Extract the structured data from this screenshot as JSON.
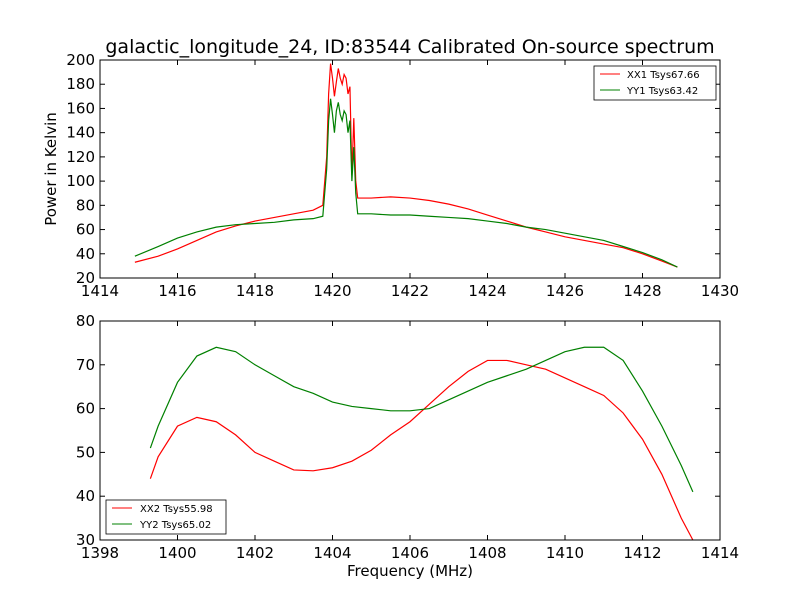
{
  "chart_data": [
    {
      "type": "line",
      "title": "galactic_longitude_24, ID:83544 Calibrated On-source spectrum",
      "xlabel": "",
      "ylabel": "Power in Kelvin",
      "xlim": [
        1414,
        1430
      ],
      "ylim": [
        20,
        200
      ],
      "xticks": [
        "1414",
        "1416",
        "1418",
        "1420",
        "1422",
        "1424",
        "1426",
        "1428",
        "1430"
      ],
      "yticks": [
        "20",
        "40",
        "60",
        "80",
        "100",
        "120",
        "140",
        "160",
        "180",
        "200"
      ],
      "grid": false,
      "legend_position": "top-right",
      "series": [
        {
          "name": "XX1 Tsys67.66",
          "color": "#ff0000",
          "points": [
            [
              1414.9,
              33
            ],
            [
              1415.5,
              38
            ],
            [
              1416,
              44
            ],
            [
              1416.5,
              51
            ],
            [
              1417,
              58
            ],
            [
              1417.5,
              63
            ],
            [
              1418,
              67
            ],
            [
              1418.5,
              70
            ],
            [
              1419,
              73
            ],
            [
              1419.5,
              76
            ],
            [
              1419.75,
              80
            ],
            [
              1419.85,
              120
            ],
            [
              1419.9,
              172
            ],
            [
              1419.95,
              197
            ],
            [
              1420.0,
              185
            ],
            [
              1420.05,
              170
            ],
            [
              1420.1,
              182
            ],
            [
              1420.15,
              193
            ],
            [
              1420.2,
              185
            ],
            [
              1420.25,
              180
            ],
            [
              1420.3,
              188
            ],
            [
              1420.35,
              185
            ],
            [
              1420.4,
              172
            ],
            [
              1420.45,
              178
            ],
            [
              1420.5,
              105
            ],
            [
              1420.55,
              152
            ],
            [
              1420.6,
              100
            ],
            [
              1420.65,
              86
            ],
            [
              1421,
              86
            ],
            [
              1421.5,
              87
            ],
            [
              1422,
              86
            ],
            [
              1422.5,
              84
            ],
            [
              1423,
              81
            ],
            [
              1423.5,
              77
            ],
            [
              1424,
              72
            ],
            [
              1424.5,
              67
            ],
            [
              1425,
              62
            ],
            [
              1425.5,
              58
            ],
            [
              1426,
              54
            ],
            [
              1426.5,
              51
            ],
            [
              1427,
              48
            ],
            [
              1427.5,
              45
            ],
            [
              1428,
              40
            ],
            [
              1428.5,
              34
            ],
            [
              1428.9,
              29
            ]
          ]
        },
        {
          "name": "YY1 Tsys63.42",
          "color": "#008000",
          "points": [
            [
              1414.9,
              38
            ],
            [
              1415.5,
              46
            ],
            [
              1416,
              53
            ],
            [
              1416.5,
              58
            ],
            [
              1417,
              62
            ],
            [
              1417.5,
              64
            ],
            [
              1418,
              65
            ],
            [
              1418.5,
              66
            ],
            [
              1419,
              68
            ],
            [
              1419.5,
              69
            ],
            [
              1419.75,
              71
            ],
            [
              1419.85,
              110
            ],
            [
              1419.9,
              150
            ],
            [
              1419.95,
              168
            ],
            [
              1420.0,
              155
            ],
            [
              1420.05,
              140
            ],
            [
              1420.1,
              158
            ],
            [
              1420.15,
              165
            ],
            [
              1420.2,
              155
            ],
            [
              1420.25,
              150
            ],
            [
              1420.3,
              158
            ],
            [
              1420.35,
              155
            ],
            [
              1420.4,
              140
            ],
            [
              1420.45,
              150
            ],
            [
              1420.5,
              100
            ],
            [
              1420.55,
              128
            ],
            [
              1420.6,
              90
            ],
            [
              1420.65,
              73
            ],
            [
              1421,
              73
            ],
            [
              1421.5,
              72
            ],
            [
              1422,
              72
            ],
            [
              1422.5,
              71
            ],
            [
              1423,
              70
            ],
            [
              1423.5,
              69
            ],
            [
              1424,
              67
            ],
            [
              1424.5,
              65
            ],
            [
              1425,
              62
            ],
            [
              1425.5,
              60
            ],
            [
              1426,
              57
            ],
            [
              1426.5,
              54
            ],
            [
              1427,
              51
            ],
            [
              1427.5,
              46
            ],
            [
              1428,
              41
            ],
            [
              1428.5,
              35
            ],
            [
              1428.9,
              29
            ]
          ]
        }
      ]
    },
    {
      "type": "line",
      "title": "",
      "xlabel": "Frequency (MHz)",
      "ylabel": "",
      "xlim": [
        1398,
        1414
      ],
      "ylim": [
        30,
        80
      ],
      "xticks": [
        "1398",
        "1400",
        "1402",
        "1404",
        "1406",
        "1408",
        "1410",
        "1412",
        "1414"
      ],
      "yticks": [
        "30",
        "40",
        "50",
        "60",
        "70",
        "80"
      ],
      "grid": false,
      "legend_position": "bottom-left",
      "series": [
        {
          "name": "XX2 Tsys55.98",
          "color": "#ff0000",
          "points": [
            [
              1399.3,
              44
            ],
            [
              1399.5,
              49
            ],
            [
              1400,
              56
            ],
            [
              1400.5,
              58
            ],
            [
              1401,
              57
            ],
            [
              1401.5,
              54
            ],
            [
              1402,
              50
            ],
            [
              1402.5,
              48
            ],
            [
              1403,
              46
            ],
            [
              1403.5,
              45.8
            ],
            [
              1404,
              46.5
            ],
            [
              1404.5,
              48
            ],
            [
              1405,
              50.5
            ],
            [
              1405.5,
              54
            ],
            [
              1406,
              57
            ],
            [
              1406.5,
              61
            ],
            [
              1407,
              65
            ],
            [
              1407.5,
              68.5
            ],
            [
              1408,
              71
            ],
            [
              1408.5,
              71
            ],
            [
              1409,
              70
            ],
            [
              1409.5,
              69
            ],
            [
              1410,
              67
            ],
            [
              1410.5,
              65
            ],
            [
              1411,
              63
            ],
            [
              1411.5,
              59
            ],
            [
              1412,
              53
            ],
            [
              1412.5,
              45
            ],
            [
              1413,
              35
            ],
            [
              1413.3,
              30
            ]
          ]
        },
        {
          "name": "YY2 Tsys65.02",
          "color": "#008000",
          "points": [
            [
              1399.3,
              51
            ],
            [
              1399.5,
              56
            ],
            [
              1400,
              66
            ],
            [
              1400.5,
              72
            ],
            [
              1401,
              74
            ],
            [
              1401.5,
              73
            ],
            [
              1402,
              70
            ],
            [
              1402.5,
              67.5
            ],
            [
              1403,
              65
            ],
            [
              1403.5,
              63.5
            ],
            [
              1404,
              61.5
            ],
            [
              1404.5,
              60.5
            ],
            [
              1405,
              60
            ],
            [
              1405.5,
              59.5
            ],
            [
              1406,
              59.5
            ],
            [
              1406.5,
              60
            ],
            [
              1407,
              62
            ],
            [
              1407.5,
              64
            ],
            [
              1408,
              66
            ],
            [
              1408.5,
              67.5
            ],
            [
              1409,
              69
            ],
            [
              1409.5,
              71
            ],
            [
              1410,
              73
            ],
            [
              1410.5,
              74
            ],
            [
              1411,
              74
            ],
            [
              1411.5,
              71
            ],
            [
              1412,
              64
            ],
            [
              1412.5,
              56
            ],
            [
              1413,
              47
            ],
            [
              1413.3,
              41
            ]
          ]
        }
      ]
    }
  ]
}
